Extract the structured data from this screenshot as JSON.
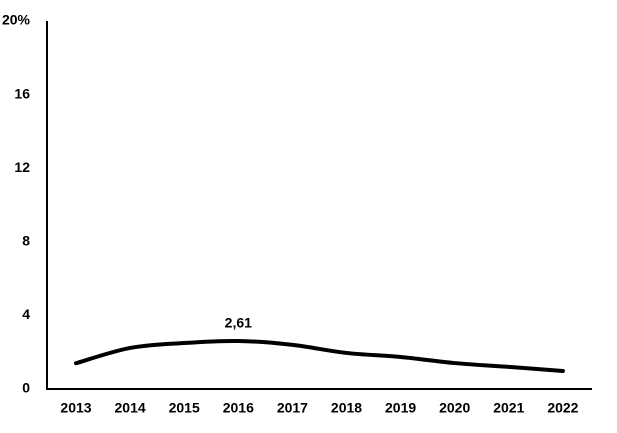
{
  "chart_data": {
    "type": "line",
    "categories": [
      "2013",
      "2014",
      "2015",
      "2016",
      "2017",
      "2018",
      "2019",
      "2020",
      "2021",
      "2022"
    ],
    "values": [
      1.4,
      2.23,
      2.5,
      2.61,
      2.4,
      1.96,
      1.74,
      1.41,
      1.2,
      0.98
    ],
    "value_labels": [
      null,
      null,
      null,
      "2,61",
      null,
      null,
      null,
      null,
      null,
      null
    ],
    "color": "#000000",
    "ylim": [
      0,
      20
    ],
    "yticks": [
      0,
      4,
      8,
      12,
      16,
      {
        "value": 20,
        "label": "20%"
      }
    ]
  }
}
